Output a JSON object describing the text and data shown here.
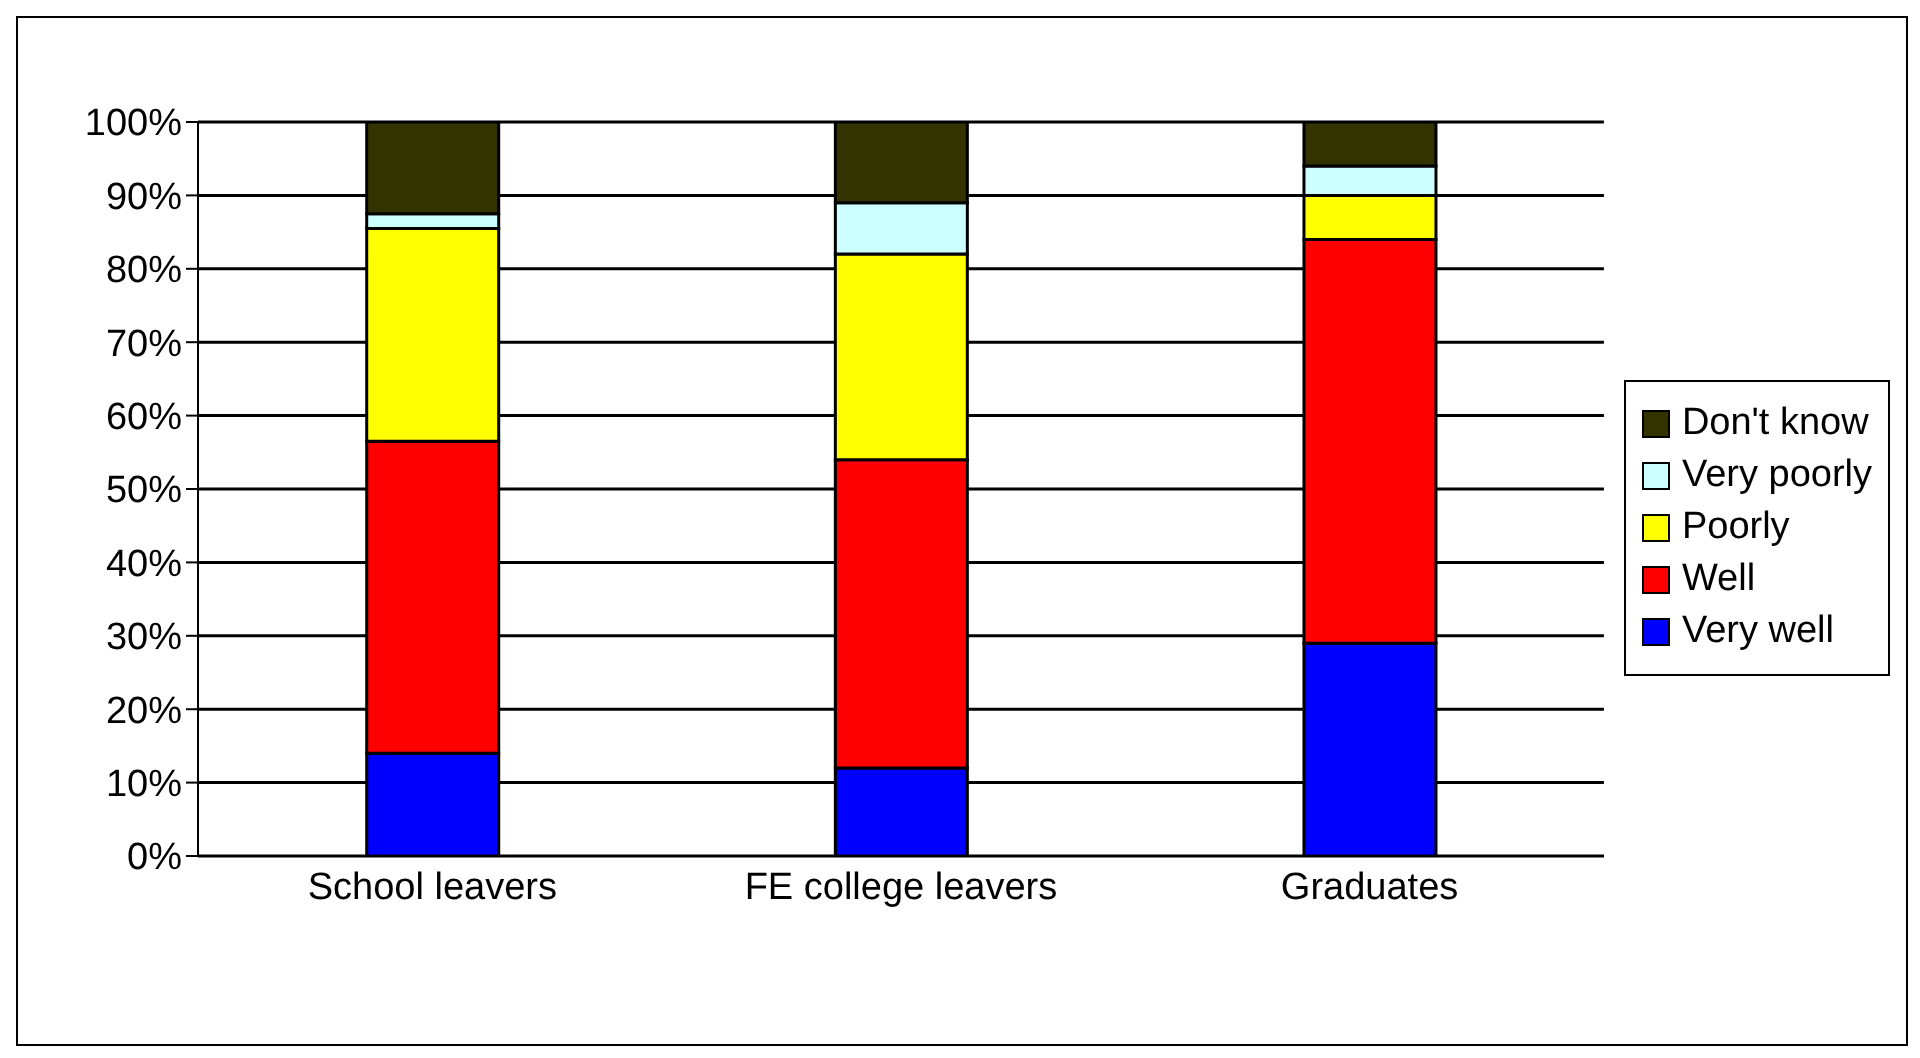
{
  "chart_data": {
    "type": "bar",
    "stacked": true,
    "categories": [
      "School leavers",
      "FE college leavers",
      "Graduates"
    ],
    "series": [
      {
        "name": "Very well",
        "color": "#0000ff",
        "values": [
          14,
          12,
          29
        ]
      },
      {
        "name": "Well",
        "color": "#ff0000",
        "values": [
          42.5,
          42,
          55
        ]
      },
      {
        "name": "Poorly",
        "color": "#ffff00",
        "values": [
          29,
          28,
          6
        ]
      },
      {
        "name": "Very poorly",
        "color": "#ccffff",
        "values": [
          2,
          7,
          4
        ]
      },
      {
        "name": "Don't know",
        "color": "#333300",
        "values": [
          12.5,
          11,
          6
        ]
      }
    ],
    "ylim": [
      0,
      100
    ],
    "yticks": [
      {
        "value": 0,
        "label": "0%"
      },
      {
        "value": 10,
        "label": "10%"
      },
      {
        "value": 20,
        "label": "20%"
      },
      {
        "value": 30,
        "label": "30%"
      },
      {
        "value": 40,
        "label": "40%"
      },
      {
        "value": 50,
        "label": "50%"
      },
      {
        "value": 60,
        "label": "60%"
      },
      {
        "value": 70,
        "label": "70%"
      },
      {
        "value": 80,
        "label": "80%"
      },
      {
        "value": 90,
        "label": "90%"
      },
      {
        "value": 100,
        "label": "100%"
      }
    ],
    "grid": "y",
    "legend": "right"
  }
}
